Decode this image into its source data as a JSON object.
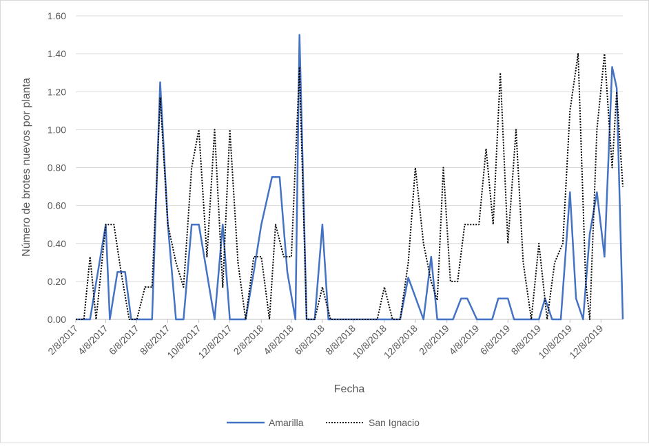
{
  "chart_data": {
    "type": "line",
    "title": "",
    "xlabel": "Fecha",
    "ylabel": "Número de brotes nuevos por planta",
    "ylim": [
      0,
      1.6
    ],
    "yticks": [
      "0.00",
      "0.20",
      "0.40",
      "0.60",
      "0.80",
      "1.00",
      "1.20",
      "1.40",
      "1.60"
    ],
    "xticks": [
      "2/8/2017",
      "4/8/2017",
      "6/8/2017",
      "8/8/2017",
      "10/8/2017",
      "12/8/2017",
      "2/8/2018",
      "4/8/2018",
      "6/8/2018",
      "8/8/2018",
      "10/8/2018",
      "12/8/2018",
      "2/8/2019",
      "4/8/2019",
      "6/8/2019",
      "8/8/2019",
      "10/8/2019",
      "12/8/2019"
    ],
    "xlim": [
      "2017-02-08",
      "2020-01-20"
    ],
    "grid": true,
    "legend_position": "bottom",
    "series": [
      {
        "name": "Amarilla",
        "color": "#4472c4",
        "style": "solid",
        "points": [
          [
            "2017-02-08",
            0
          ],
          [
            "2017-02-24",
            0
          ],
          [
            "2017-03-08",
            0
          ],
          [
            "2017-04-08",
            0.5
          ],
          [
            "2017-04-16",
            0
          ],
          [
            "2017-05-01",
            0.25
          ],
          [
            "2017-05-16",
            0.25
          ],
          [
            "2017-05-28",
            0
          ],
          [
            "2017-06-20",
            0
          ],
          [
            "2017-07-08",
            0
          ],
          [
            "2017-07-24",
            1.25
          ],
          [
            "2017-08-08",
            0.5
          ],
          [
            "2017-08-24",
            0
          ],
          [
            "2017-09-08",
            0
          ],
          [
            "2017-09-24",
            0.5
          ],
          [
            "2017-10-08",
            0.5
          ],
          [
            "2017-11-08",
            0
          ],
          [
            "2017-11-24",
            0.5
          ],
          [
            "2017-12-08",
            0
          ],
          [
            "2018-01-08",
            0
          ],
          [
            "2018-01-24",
            0.25
          ],
          [
            "2018-02-08",
            0.5
          ],
          [
            "2018-03-01",
            0.75
          ],
          [
            "2018-03-16",
            0.75
          ],
          [
            "2018-03-31",
            0.25
          ],
          [
            "2018-04-16",
            0
          ],
          [
            "2018-04-24",
            1.5
          ],
          [
            "2018-05-08",
            0
          ],
          [
            "2018-05-24",
            0
          ],
          [
            "2018-06-08",
            0.5
          ],
          [
            "2018-06-20",
            0
          ],
          [
            "2018-07-08",
            0
          ],
          [
            "2018-08-08",
            0
          ],
          [
            "2018-09-08",
            0
          ],
          [
            "2018-10-08",
            0
          ],
          [
            "2018-11-08",
            0
          ],
          [
            "2018-11-24",
            0.22
          ],
          [
            "2018-12-24",
            0
          ],
          [
            "2019-01-08",
            0.33
          ],
          [
            "2019-01-20",
            0
          ],
          [
            "2019-02-08",
            0
          ],
          [
            "2019-02-20",
            0
          ],
          [
            "2019-03-08",
            0.11
          ],
          [
            "2019-03-20",
            0.11
          ],
          [
            "2019-04-08",
            0
          ],
          [
            "2019-04-20",
            0
          ],
          [
            "2019-05-08",
            0
          ],
          [
            "2019-05-20",
            0.11
          ],
          [
            "2019-06-08",
            0.11
          ],
          [
            "2019-06-20",
            0
          ],
          [
            "2019-07-08",
            0
          ],
          [
            "2019-07-28",
            0
          ],
          [
            "2019-08-08",
            0
          ],
          [
            "2019-08-20",
            0.11
          ],
          [
            "2019-09-03",
            0
          ],
          [
            "2019-09-20",
            0
          ],
          [
            "2019-10-08",
            0.67
          ],
          [
            "2019-10-20",
            0.11
          ],
          [
            "2019-11-03",
            0
          ],
          [
            "2019-11-16",
            0.45
          ],
          [
            "2019-11-30",
            0.67
          ],
          [
            "2019-12-15",
            0.33
          ],
          [
            "2019-12-30",
            1.33
          ],
          [
            "2020-01-08",
            1.22
          ],
          [
            "2020-01-20",
            0
          ]
        ]
      },
      {
        "name": "San Ignacio",
        "color": "#000000",
        "style": "dotted",
        "points": [
          [
            "2017-02-08",
            0
          ],
          [
            "2017-02-24",
            0
          ],
          [
            "2017-03-08",
            0.33
          ],
          [
            "2017-03-20",
            0
          ],
          [
            "2017-04-08",
            0.5
          ],
          [
            "2017-04-24",
            0.5
          ],
          [
            "2017-05-08",
            0.25
          ],
          [
            "2017-05-24",
            0
          ],
          [
            "2017-06-08",
            0
          ],
          [
            "2017-06-24",
            0.17
          ],
          [
            "2017-07-08",
            0.17
          ],
          [
            "2017-07-24",
            1.17
          ],
          [
            "2017-08-08",
            0.5
          ],
          [
            "2017-08-24",
            0.3
          ],
          [
            "2017-09-08",
            0.17
          ],
          [
            "2017-09-24",
            0.8
          ],
          [
            "2017-10-08",
            1.0
          ],
          [
            "2017-10-24",
            0.33
          ],
          [
            "2017-11-08",
            1.0
          ],
          [
            "2017-11-24",
            0.17
          ],
          [
            "2017-12-08",
            1.0
          ],
          [
            "2017-12-24",
            0.3
          ],
          [
            "2018-01-08",
            0
          ],
          [
            "2018-01-24",
            0.33
          ],
          [
            "2018-02-08",
            0.33
          ],
          [
            "2018-02-24",
            0
          ],
          [
            "2018-03-08",
            0.5
          ],
          [
            "2018-03-24",
            0.33
          ],
          [
            "2018-04-08",
            0.33
          ],
          [
            "2018-04-24",
            1.33
          ],
          [
            "2018-05-08",
            0
          ],
          [
            "2018-05-24",
            0
          ],
          [
            "2018-06-08",
            0.17
          ],
          [
            "2018-06-24",
            0
          ],
          [
            "2018-07-08",
            0
          ],
          [
            "2018-08-08",
            0
          ],
          [
            "2018-09-08",
            0
          ],
          [
            "2018-09-24",
            0
          ],
          [
            "2018-10-08",
            0.17
          ],
          [
            "2018-10-24",
            0
          ],
          [
            "2018-11-08",
            0
          ],
          [
            "2018-11-24",
            0.3
          ],
          [
            "2018-12-08",
            0.8
          ],
          [
            "2018-12-24",
            0.4
          ],
          [
            "2019-01-08",
            0.2
          ],
          [
            "2019-01-20",
            0.1
          ],
          [
            "2019-02-01",
            0.8
          ],
          [
            "2019-02-15",
            0.2
          ],
          [
            "2019-03-01",
            0.2
          ],
          [
            "2019-03-15",
            0.5
          ],
          [
            "2019-03-29",
            0.5
          ],
          [
            "2019-04-12",
            0.5
          ],
          [
            "2019-04-26",
            0.9
          ],
          [
            "2019-05-10",
            0.5
          ],
          [
            "2019-05-24",
            1.3
          ],
          [
            "2019-06-08",
            0.4
          ],
          [
            "2019-06-24",
            1.0
          ],
          [
            "2019-07-08",
            0.3
          ],
          [
            "2019-07-24",
            0
          ],
          [
            "2019-08-08",
            0.4
          ],
          [
            "2019-08-24",
            0
          ],
          [
            "2019-09-08",
            0.3
          ],
          [
            "2019-09-24",
            0.4
          ],
          [
            "2019-10-08",
            1.1
          ],
          [
            "2019-10-24",
            1.4
          ],
          [
            "2019-11-08",
            0.2
          ],
          [
            "2019-11-16",
            0
          ],
          [
            "2019-11-30",
            1.0
          ],
          [
            "2019-12-15",
            1.4
          ],
          [
            "2019-12-30",
            0.8
          ],
          [
            "2020-01-08",
            1.2
          ],
          [
            "2020-01-20",
            0.7
          ]
        ]
      }
    ]
  }
}
